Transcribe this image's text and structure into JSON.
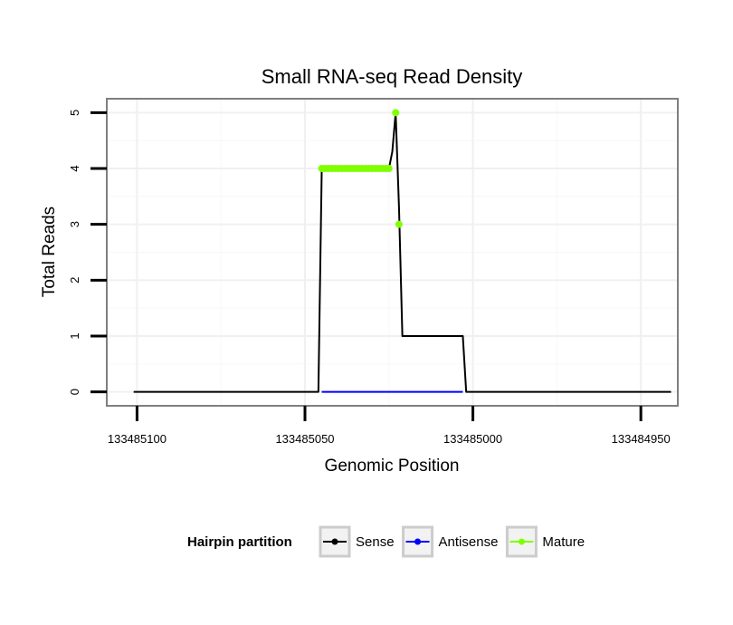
{
  "chart_data": {
    "type": "line",
    "title": "Small RNA-seq Read Density",
    "xlabel": "Genomic Position",
    "ylabel": "Total Reads",
    "xlim": [
      133485109,
      133484939
    ],
    "ylim": [
      -0.25,
      5.25
    ],
    "x_reversed": true,
    "x_ticks": [
      133485100,
      133485050,
      133485000,
      133484950
    ],
    "x_tick_labels": [
      "133485100",
      "133485050",
      "133485000",
      "133484950"
    ],
    "y_ticks": [
      0,
      1,
      2,
      3,
      4,
      5
    ],
    "y_tick_labels": [
      "0",
      "1",
      "2",
      "3",
      "4",
      "5"
    ],
    "grid": true,
    "legend": {
      "title": "Hairpin partition",
      "position": "bottom",
      "entries": [
        "Sense",
        "Antisense",
        "Mature"
      ]
    },
    "series": [
      {
        "name": "Sense",
        "color": "#000000",
        "x": [
          133485101,
          133485046,
          133485045,
          133485025,
          133485024,
          133485023,
          133485022,
          133485021,
          133485003,
          133485002,
          133484941
        ],
        "y": [
          0,
          0,
          4,
          4,
          4.3,
          5,
          3.3,
          1,
          1,
          0,
          0
        ]
      },
      {
        "name": "Antisense",
        "color": "#0000ff",
        "x": [
          133485045,
          133485003
        ],
        "y": [
          0,
          0
        ]
      },
      {
        "name": "Mature",
        "color": "#7fff00",
        "points_x": [
          133485045,
          133485044,
          133485043,
          133485042,
          133485041,
          133485040,
          133485039,
          133485038,
          133485037,
          133485036,
          133485035,
          133485034,
          133485033,
          133485032,
          133485031,
          133485030,
          133485029,
          133485028,
          133485027,
          133485026,
          133485025,
          133485023,
          133485022
        ],
        "points_y": [
          4,
          4,
          4,
          4,
          4,
          4,
          4,
          4,
          4,
          4,
          4,
          4,
          4,
          4,
          4,
          4,
          4,
          4,
          4,
          4,
          4,
          5,
          3
        ]
      }
    ]
  }
}
